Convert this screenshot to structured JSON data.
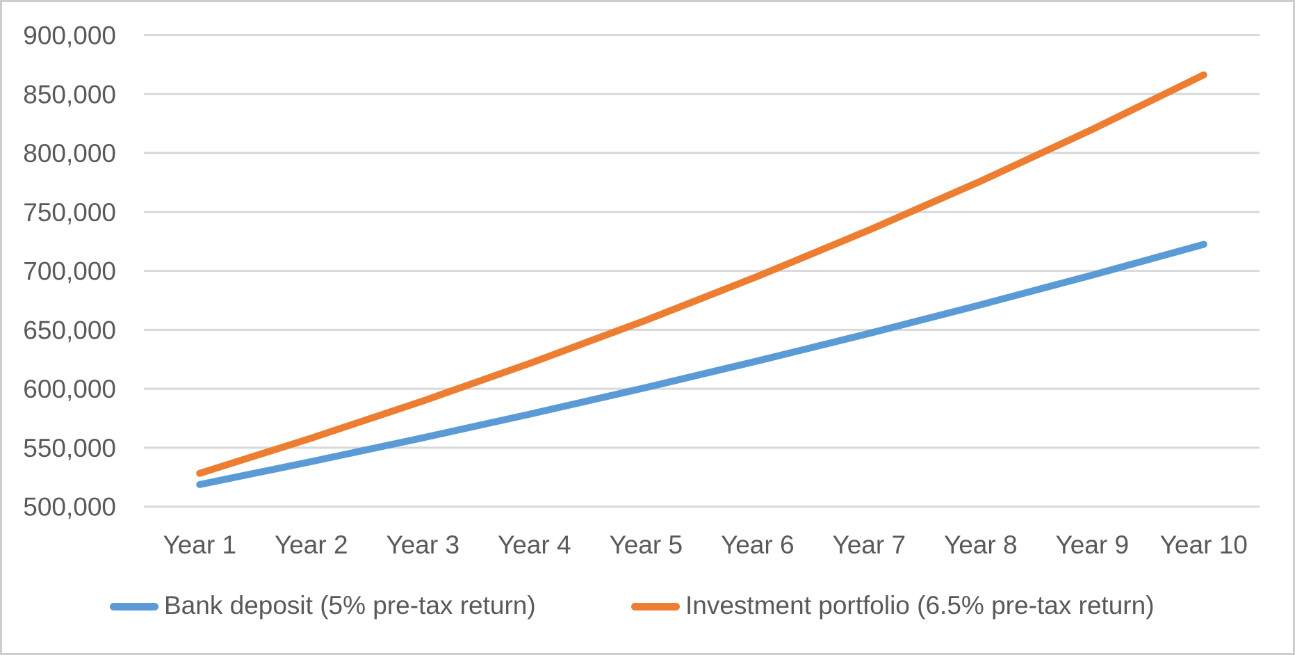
{
  "chart_data": {
    "type": "line",
    "title": "",
    "categories": [
      "Year 1",
      "Year 2",
      "Year 3",
      "Year 4",
      "Year 5",
      "Year 6",
      "Year 7",
      "Year 8",
      "Year 9",
      "Year 10"
    ],
    "series": [
      {
        "name": "Bank deposit (5% pre-tax return)",
        "color": "#5B9BD5",
        "values": [
          518750,
          538203,
          558386,
          579325,
          601050,
          623589,
          646974,
          671235,
          696407,
          722522
        ]
      },
      {
        "name": "Investment portfolio (6.5% pre-tax return)",
        "color": "#ED7D31",
        "values": [
          528250,
          558096,
          589629,
          622943,
          658139,
          695324,
          734609,
          776115,
          819965,
          866293
        ]
      }
    ],
    "y_axis": {
      "min": 500000,
      "max": 900000,
      "tick_step": 50000,
      "tick_labels": [
        "500,000",
        "550,000",
        "600,000",
        "650,000",
        "700,000",
        "750,000",
        "800,000",
        "850,000",
        "900,000"
      ]
    },
    "x_axis": {
      "tick_labels": [
        "Year 1",
        "Year 2",
        "Year 3",
        "Year 4",
        "Year 5",
        "Year 6",
        "Year 7",
        "Year 8",
        "Year 9",
        "Year 10"
      ]
    },
    "grid": true,
    "legend_position": "bottom",
    "colors": {
      "text": "#595959",
      "gridline": "#D9D9D9",
      "border": "#CDCDCD",
      "background": "#FFFFFF"
    }
  }
}
